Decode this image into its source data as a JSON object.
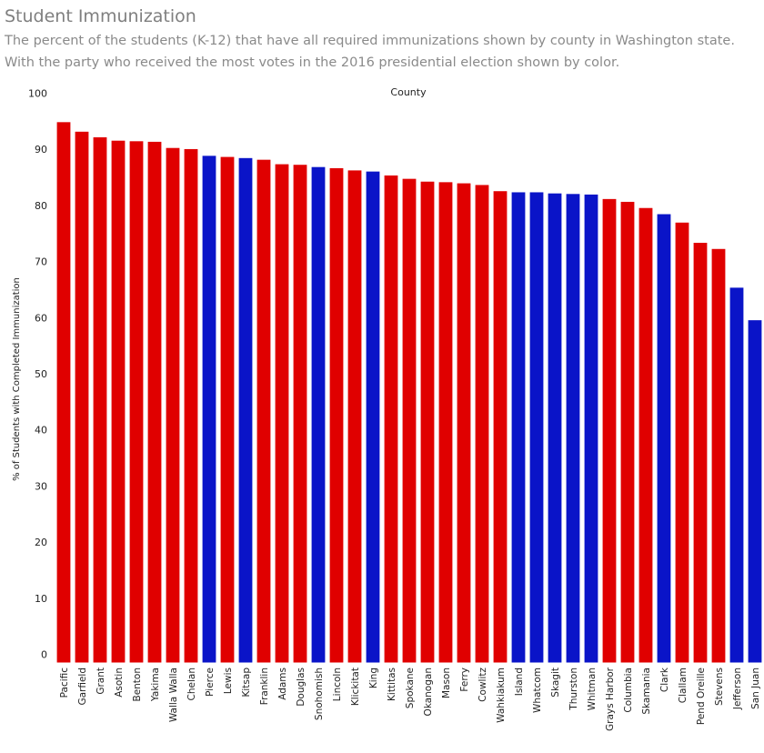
{
  "header": {
    "title": "Student Immunization",
    "subtitle_line1": "The percent of the students (K-12) that have all required immunizations shown by county in Washington state.",
    "subtitle_line2": "With the party who received the most votes in the 2016 presidential election shown by color."
  },
  "colors": {
    "republican": "#e00000",
    "democratic": "#0a14c8"
  },
  "chart_data": {
    "type": "bar",
    "xlabel": "County",
    "ylabel": "% of Students with Completed Immunization",
    "ylim": [
      0,
      100
    ],
    "yticks": [
      0,
      10,
      20,
      30,
      40,
      50,
      60,
      70,
      80,
      90,
      100
    ],
    "grid": false,
    "categories": [
      "Pacific",
      "Garfield",
      "Grant",
      "Asotin",
      "Benton",
      "Yakima",
      "Walla Walla",
      "Chelan",
      "Pierce",
      "Lewis",
      "Kitsap",
      "Franklin",
      "Adams",
      "Douglas",
      "Snohomish",
      "Lincoln",
      "Klickitat",
      "King",
      "Kittitas",
      "Spokane",
      "Okanogan",
      "Mason",
      "Ferry",
      "Cowlitz",
      "Wahkiakum",
      "Island",
      "Whatcom",
      "Skagit",
      "Thurston",
      "Whitman",
      "Grays Harbor",
      "Columbia",
      "Skamania",
      "Clark",
      "Clallam",
      "Pend Oreille",
      "Stevens",
      "Jefferson",
      "San Juan"
    ],
    "values": [
      96.3,
      94.6,
      93.6,
      93.0,
      92.9,
      92.8,
      91.7,
      91.5,
      90.3,
      90.1,
      89.9,
      89.6,
      88.8,
      88.7,
      88.3,
      88.1,
      87.7,
      87.5,
      86.8,
      86.2,
      85.7,
      85.6,
      85.4,
      85.1,
      84.0,
      83.8,
      83.8,
      83.6,
      83.5,
      83.4,
      82.6,
      82.1,
      81.0,
      79.9,
      78.4,
      74.8,
      73.7,
      66.8,
      61.0
    ],
    "party": [
      "R",
      "R",
      "R",
      "R",
      "R",
      "R",
      "R",
      "R",
      "D",
      "R",
      "D",
      "R",
      "R",
      "R",
      "D",
      "R",
      "R",
      "D",
      "R",
      "R",
      "R",
      "R",
      "R",
      "R",
      "R",
      "D",
      "D",
      "D",
      "D",
      "D",
      "R",
      "R",
      "R",
      "D",
      "R",
      "R",
      "R",
      "D",
      "D"
    ]
  }
}
